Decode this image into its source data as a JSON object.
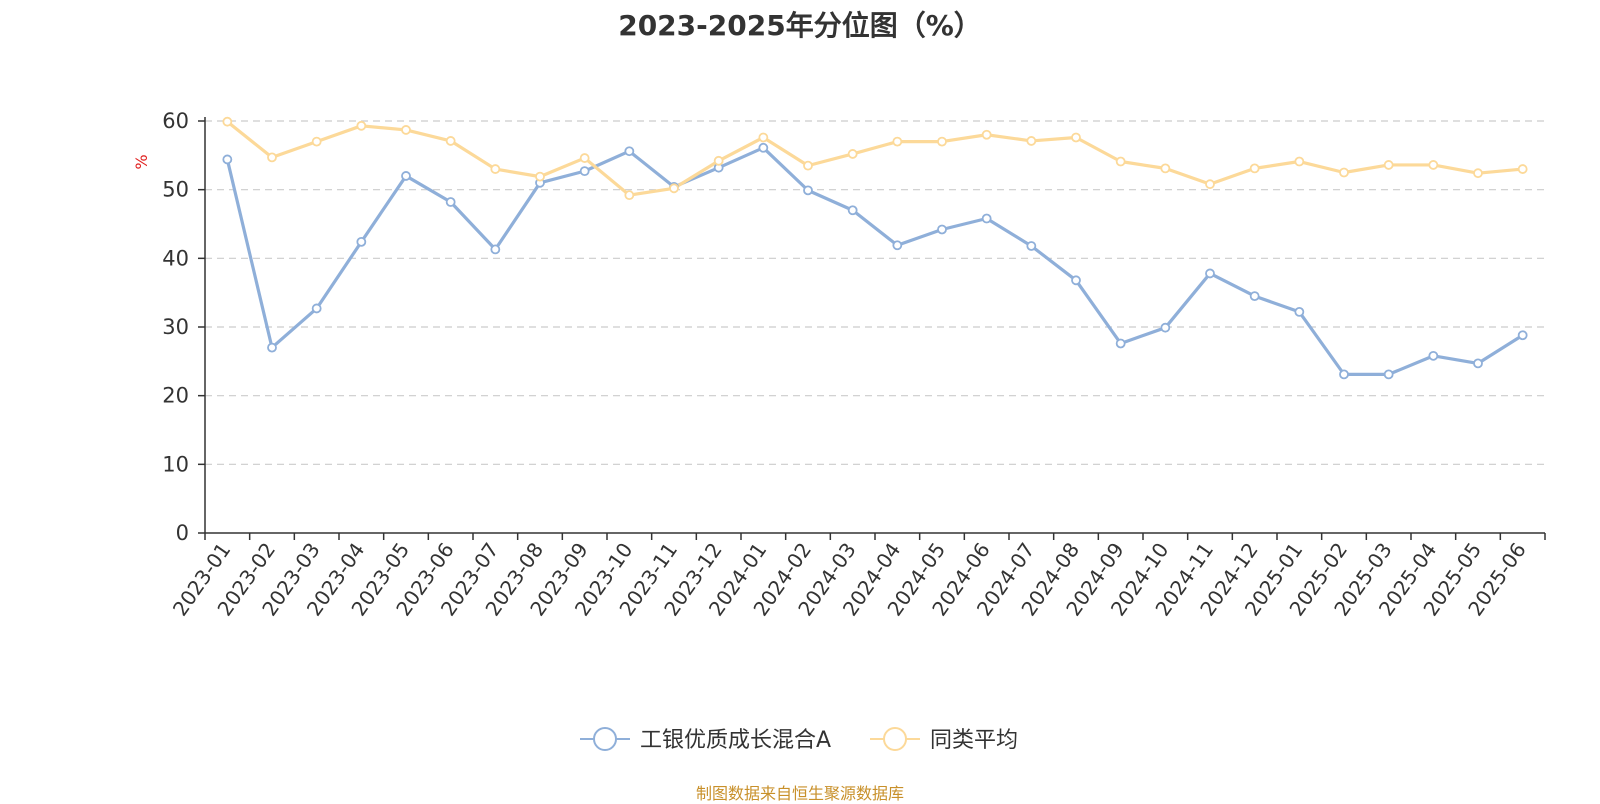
{
  "chart_data": {
    "type": "line",
    "title": "2023-2025年分位图（%）",
    "ylabel": "%",
    "xlabel": "",
    "ylim": [
      0,
      60
    ],
    "yticks": [
      0,
      10,
      20,
      30,
      40,
      50,
      60
    ],
    "grid": "horizontal dashed",
    "legend_position": "bottom-center",
    "x": [
      "2023-01",
      "2023-02",
      "2023-03",
      "2023-04",
      "2023-05",
      "2023-06",
      "2023-07",
      "2023-08",
      "2023-09",
      "2023-10",
      "2023-11",
      "2023-12",
      "2024-01",
      "2024-02",
      "2024-03",
      "2024-04",
      "2024-05",
      "2024-06",
      "2024-07",
      "2024-08",
      "2024-09",
      "2024-10",
      "2024-11",
      "2024-12",
      "2025-01",
      "2025-02",
      "2025-03",
      "2025-04",
      "2025-05",
      "2025-06"
    ],
    "series": [
      {
        "name": "工银优质成长混合A",
        "color": "#8fafd9",
        "values": [
          54.4,
          27.0,
          32.7,
          42.4,
          52.0,
          48.2,
          41.3,
          51.0,
          52.7,
          55.6,
          50.4,
          53.2,
          56.1,
          49.9,
          47.0,
          41.9,
          44.2,
          45.8,
          41.8,
          36.8,
          27.6,
          29.9,
          37.8,
          34.5,
          32.2,
          23.1,
          23.1,
          25.8,
          24.7,
          28.8
        ]
      },
      {
        "name": "同类平均",
        "color": "#fcd999",
        "values": [
          59.9,
          54.7,
          57.0,
          59.3,
          58.7,
          57.1,
          53.0,
          51.9,
          54.6,
          49.2,
          50.2,
          54.2,
          57.6,
          53.5,
          55.2,
          57.0,
          57.0,
          58.0,
          57.1,
          57.6,
          54.1,
          53.1,
          50.8,
          53.1,
          54.1,
          52.5,
          53.6,
          53.6,
          52.4,
          53.0
        ]
      }
    ]
  },
  "footer": {
    "source": "制图数据来自恒生聚源数据库"
  }
}
